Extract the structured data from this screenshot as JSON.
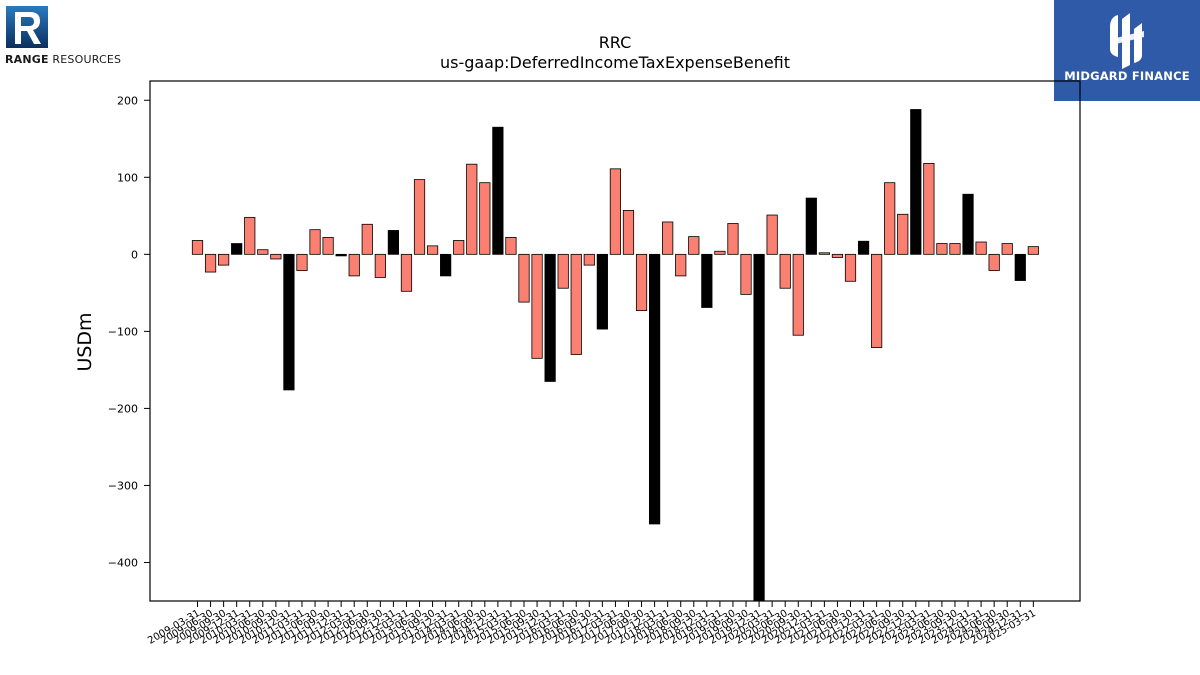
{
  "logos": {
    "left": {
      "brand": "RANGE",
      "rest": " RESOURCES"
    },
    "right": {
      "text": "MIDGARD FINANCE"
    }
  },
  "colors": {
    "positive_bar": "#fa8072",
    "highlight_bar": "#000000",
    "right_logo_bg": "#2f5aa8"
  },
  "chart_data": {
    "type": "bar",
    "title": "RRC",
    "subtitle": "us-gaap:DeferredIncomeTaxExpenseBenefit",
    "xlabel": "",
    "ylabel": "USDm",
    "ylim": [
      -450,
      225
    ],
    "yticks": [
      200,
      100,
      0,
      -100,
      -200,
      -300,
      -400
    ],
    "categories": [
      "2009-03-31",
      "2009-06-30",
      "2009-09-30",
      "2009-12-31",
      "2010-03-31",
      "2010-06-30",
      "2010-09-30",
      "2010-12-31",
      "2011-03-31",
      "2011-06-30",
      "2011-09-30",
      "2011-12-31",
      "2012-03-31",
      "2012-06-30",
      "2012-09-30",
      "2012-12-31",
      "2013-03-31",
      "2013-06-30",
      "2013-09-30",
      "2013-12-31",
      "2014-03-31",
      "2014-06-30",
      "2014-09-30",
      "2014-12-31",
      "2015-03-31",
      "2015-06-30",
      "2015-09-30",
      "2015-12-31",
      "2016-03-31",
      "2016-06-30",
      "2016-09-30",
      "2016-12-31",
      "2017-03-31",
      "2017-06-30",
      "2017-09-30",
      "2017-12-31",
      "2018-03-31",
      "2018-06-30",
      "2018-09-30",
      "2018-12-31",
      "2019-03-31",
      "2019-06-30",
      "2019-09-30",
      "2019-12-31",
      "2020-03-31",
      "2020-06-30",
      "2020-09-30",
      "2020-12-31",
      "2021-03-31",
      "2021-06-30",
      "2021-09-30",
      "2021-12-31",
      "2022-03-31",
      "2022-06-30",
      "2022-09-30",
      "2022-12-31",
      "2023-03-31",
      "2023-06-30",
      "2023-09-30",
      "2023-12-31",
      "2024-03-31",
      "2024-06-30",
      "2024-09-30",
      "2024-12-31",
      "2025-03-31"
    ],
    "values": [
      18,
      -23,
      -14,
      14,
      48,
      6,
      -6,
      -176,
      -21,
      32,
      22,
      -2,
      -28,
      39,
      -30,
      31,
      -48,
      97,
      11,
      -28,
      18,
      117,
      93,
      165,
      22,
      -62,
      -135,
      -165,
      -44,
      -130,
      -14,
      -97,
      111,
      57,
      -73,
      -350,
      42,
      -28,
      23,
      -69,
      4,
      40,
      -52,
      -450,
      51,
      -44,
      -105,
      73,
      2,
      -4,
      -35,
      17,
      -121,
      93,
      52,
      188,
      118,
      14,
      14,
      78,
      16,
      -21,
      14,
      -34,
      10
    ],
    "highlight": [
      false,
      false,
      false,
      true,
      false,
      false,
      false,
      true,
      false,
      false,
      false,
      true,
      false,
      false,
      false,
      true,
      false,
      false,
      false,
      true,
      false,
      false,
      false,
      true,
      false,
      false,
      false,
      true,
      false,
      false,
      false,
      true,
      false,
      false,
      false,
      true,
      false,
      false,
      false,
      true,
      false,
      false,
      false,
      true,
      false,
      false,
      false,
      true,
      false,
      false,
      false,
      true,
      false,
      false,
      false,
      true,
      false,
      false,
      false,
      true,
      false,
      false,
      false,
      true,
      false
    ]
  }
}
